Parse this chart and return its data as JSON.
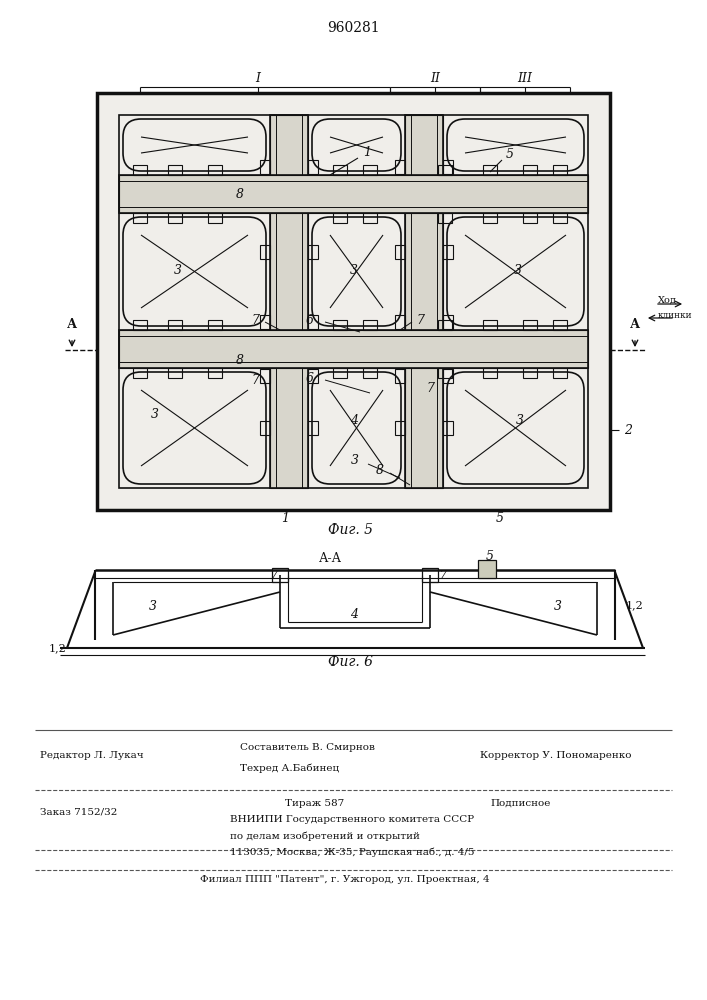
{
  "patent_number": "960281",
  "bg_color": "#ffffff",
  "line_color": "#111111",
  "fig5_caption": "Фиг. 5",
  "fig6_caption": "Фиг. 6",
  "section_label": "А-А",
  "roman_labels": [
    "I",
    "II",
    "III"
  ],
  "caption_editor": "Редактор Л. Лукач",
  "caption_composer": "Составитель В. Смирнов",
  "caption_tech": "Техред А.Бабинец",
  "caption_corrector": "Корректор У. Пономаренко",
  "caption_order": "Заказ 7152/32",
  "caption_circulation": "Тираж 587",
  "caption_subscription": "Подписное",
  "caption_org1": "ВНИИПИ Государственного комитета СССР",
  "caption_org2": "по делам изобретений и открытий",
  "caption_address": "113035, Москва, Ж-35, Раушская наб., д. 4/5",
  "caption_branch": "Филиал ППП \"Патент\", г. Ужгород, ул. Проектная, 4"
}
